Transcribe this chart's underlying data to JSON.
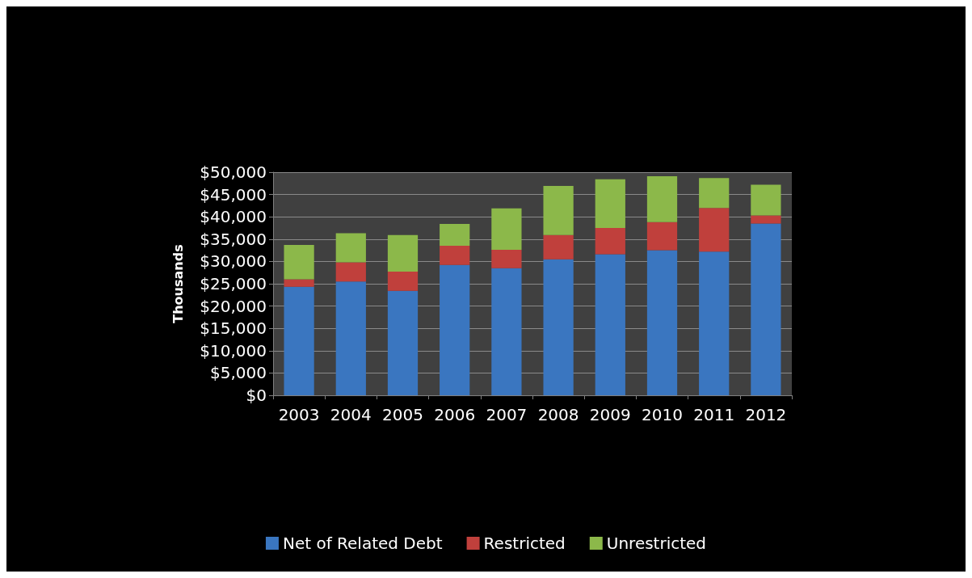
{
  "chart_data": {
    "type": "bar",
    "stacked": true,
    "ylabel": "Thousands",
    "categories": [
      "2003",
      "2004",
      "2005",
      "2006",
      "2007",
      "2008",
      "2009",
      "2010",
      "2011",
      "2012"
    ],
    "series": [
      {
        "name": "Net of Related Debt",
        "color": "#3a76c0",
        "values": [
          24300,
          25500,
          23400,
          29200,
          28500,
          30500,
          31600,
          32500,
          32200,
          38500
        ]
      },
      {
        "name": "Restricted",
        "color": "#c0403c",
        "values": [
          1700,
          4300,
          4300,
          4300,
          4100,
          5400,
          5900,
          6300,
          9800,
          1800
        ]
      },
      {
        "name": "Unrestricted",
        "color": "#8cb84a",
        "values": [
          7700,
          6500,
          8200,
          4900,
          9300,
          11000,
          10900,
          10300,
          6700,
          6900
        ]
      }
    ],
    "ylim": [
      0,
      50000
    ],
    "yticks": [
      {
        "value": 0,
        "label": "$0"
      },
      {
        "value": 5000,
        "label": "$5,000"
      },
      {
        "value": 10000,
        "label": "$10,000"
      },
      {
        "value": 15000,
        "label": "$15,000"
      },
      {
        "value": 20000,
        "label": "$20,000"
      },
      {
        "value": 25000,
        "label": "$25,000"
      },
      {
        "value": 30000,
        "label": "$30,000"
      },
      {
        "value": 35000,
        "label": "$35,000"
      },
      {
        "value": 40000,
        "label": "$40,000"
      },
      {
        "value": 45000,
        "label": "$45,000"
      },
      {
        "value": 50000,
        "label": "$50,000"
      }
    ],
    "grid": "y",
    "legend": "bottom"
  }
}
